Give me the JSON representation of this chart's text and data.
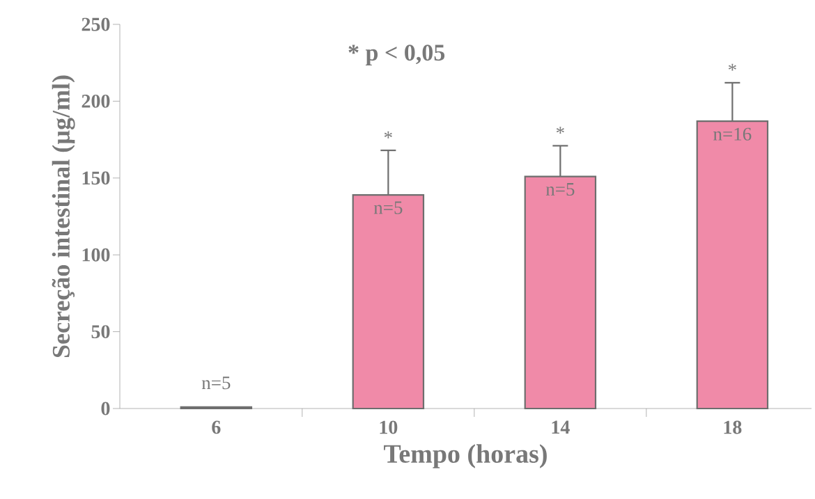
{
  "chart_data": {
    "type": "bar",
    "categories": [
      "6",
      "10",
      "14",
      "18"
    ],
    "values": [
      1,
      139,
      151,
      187
    ],
    "errors": [
      null,
      29,
      20,
      25
    ],
    "color": "#f08aa8",
    "xlabel": "Tempo (horas)",
    "ylabel": "Secreção intestinal (µg/ml)",
    "ylim": [
      0,
      250
    ],
    "yticks": [
      0,
      50,
      100,
      150,
      200,
      250
    ],
    "annotations": [
      "* p < 0,05",
      {
        "text": "n=5",
        "x": "6",
        "y": 1
      },
      {
        "text": "*",
        "x": "10",
        "y": 168
      },
      {
        "text": "n=5",
        "x": "10",
        "y": 139
      },
      {
        "text": "*",
        "x": "14",
        "y": 171
      },
      {
        "text": "n=5",
        "x": "14",
        "y": 151
      },
      {
        "text": "*",
        "x": "18",
        "y": 212
      },
      {
        "text": "n=16",
        "x": "18",
        "y": 187
      }
    ]
  }
}
